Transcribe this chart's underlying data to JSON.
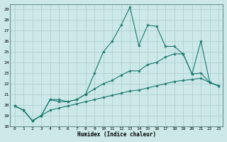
{
  "title": "",
  "xlabel": "Humidex (Indice chaleur)",
  "bg_color": "#cce8e8",
  "grid_color": "#aacccc",
  "line_color": "#1a7a6e",
  "xlim": [
    -0.5,
    23.5
  ],
  "ylim": [
    18.0,
    29.5
  ],
  "yticks": [
    18,
    19,
    20,
    21,
    22,
    23,
    24,
    25,
    26,
    27,
    28,
    29
  ],
  "xticks": [
    0,
    1,
    2,
    3,
    4,
    5,
    6,
    7,
    8,
    9,
    10,
    11,
    12,
    13,
    14,
    15,
    16,
    17,
    18,
    19,
    20,
    21,
    22,
    23
  ],
  "line1_x": [
    0,
    1,
    2,
    3,
    4,
    5,
    6,
    7,
    8,
    9,
    10,
    11,
    12,
    13,
    14,
    15,
    16,
    17,
    18,
    19,
    20,
    21,
    22,
    23
  ],
  "line1_y": [
    19.9,
    19.5,
    18.5,
    19.0,
    20.5,
    20.5,
    20.3,
    20.5,
    21.0,
    23.0,
    25.0,
    26.0,
    27.5,
    29.2,
    25.6,
    27.5,
    27.4,
    25.5,
    25.5,
    24.8,
    22.9,
    26.0,
    22.1,
    21.8
  ],
  "line2_x": [
    0,
    1,
    2,
    3,
    4,
    5,
    6,
    7,
    8,
    9,
    10,
    11,
    12,
    13,
    14,
    15,
    16,
    17,
    18,
    19,
    20,
    21,
    22,
    23
  ],
  "line2_y": [
    19.9,
    19.5,
    18.5,
    19.0,
    20.5,
    20.3,
    20.3,
    20.5,
    21.0,
    21.5,
    22.0,
    22.3,
    22.8,
    23.2,
    23.2,
    23.8,
    24.0,
    24.5,
    24.8,
    24.8,
    22.9,
    23.0,
    22.1,
    21.8
  ],
  "line3_x": [
    0,
    1,
    2,
    3,
    4,
    5,
    6,
    7,
    8,
    9,
    10,
    11,
    12,
    13,
    14,
    15,
    16,
    17,
    18,
    19,
    20,
    21,
    22,
    23
  ],
  "line3_y": [
    19.9,
    19.5,
    18.5,
    19.0,
    19.5,
    19.7,
    19.9,
    20.1,
    20.3,
    20.5,
    20.7,
    20.9,
    21.1,
    21.3,
    21.4,
    21.6,
    21.8,
    22.0,
    22.2,
    22.3,
    22.4,
    22.5,
    22.1,
    21.8
  ]
}
